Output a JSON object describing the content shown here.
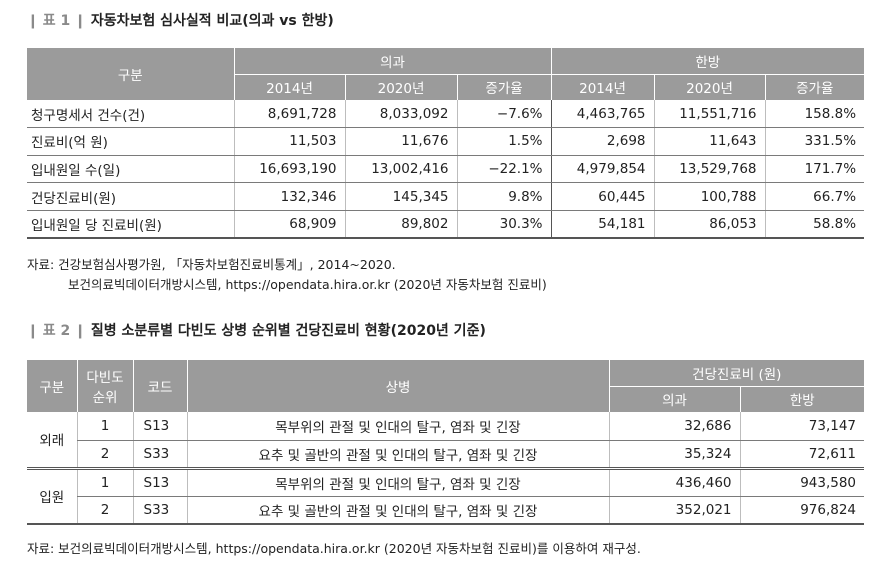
{
  "table1": {
    "label": "표 1",
    "title": "자동차보험 심사실적 비교(의과 vs 한방)",
    "header_group": "구분",
    "group1": "의과",
    "group2": "한방",
    "subheaders": [
      "2014년",
      "2020년",
      "증가율",
      "2014년",
      "2020년",
      "증가율"
    ],
    "rows": [
      {
        "label": "청구명세서 건수(건)",
        "cells": [
          "8,691,728",
          "8,033,092",
          "−7.6%",
          "4,463,765",
          "11,551,716",
          "158.8%"
        ]
      },
      {
        "label": "진료비(억 원)",
        "cells": [
          "11,503",
          "11,676",
          "1.5%",
          "2,698",
          "11,643",
          "331.5%"
        ]
      },
      {
        "label": "입내원일 수(일)",
        "cells": [
          "16,693,190",
          "13,002,416",
          "−22.1%",
          "4,979,854",
          "13,529,768",
          "171.7%"
        ]
      },
      {
        "label": "건당진료비(원)",
        "cells": [
          "132,346",
          "145,345",
          "9.8%",
          "60,445",
          "100,788",
          "66.7%"
        ]
      },
      {
        "label": "입내원일 당 진료비(원)",
        "cells": [
          "68,909",
          "89,802",
          "30.3%",
          "54,181",
          "86,053",
          "58.8%"
        ]
      }
    ],
    "source_line1": "자료: 건강보험심사평가원, 「자동차보험진료비통계」, 2014~2020.",
    "source_line2": "보건의료빅데이터개방시스템, https://opendata.hira.or.kr (2020년 자동차보험 진료비)"
  },
  "table2": {
    "label": "표 2",
    "title": "질병 소분류별 다빈도 상병 순위별 건당진료비 현황(2020년 기준)",
    "headers": {
      "gubun": "구분",
      "rank_line1": "다빈도",
      "rank_line2": "순위",
      "code": "코드",
      "disease": "상병",
      "cost_group": "건당진료비 (원)",
      "medical": "의과",
      "korean": "한방"
    },
    "groups": [
      {
        "name": "외래",
        "rows": [
          {
            "rank": "1",
            "code": "S13",
            "disease": "목부위의 관절 및 인대의 탈구, 염좌 및 긴장",
            "medical": "32,686",
            "korean": "73,147"
          },
          {
            "rank": "2",
            "code": "S33",
            "disease": "요추 및 골반의 관절 및 인대의 탈구, 염좌 및 긴장",
            "medical": "35,324",
            "korean": "72,611"
          }
        ]
      },
      {
        "name": "입원",
        "rows": [
          {
            "rank": "1",
            "code": "S13",
            "disease": "목부위의 관절 및 인대의 탈구, 염좌 및 긴장",
            "medical": "436,460",
            "korean": "943,580"
          },
          {
            "rank": "2",
            "code": "S33",
            "disease": "요추 및 골반의 관절 및 인대의 탈구, 염좌 및 긴장",
            "medical": "352,021",
            "korean": "976,824"
          }
        ]
      }
    ],
    "source": "자료: 보건의료빅데이터개방시스템, https://opendata.hira.or.kr (2020년 자동차보험 진료비)를 이용하여 재구성."
  }
}
